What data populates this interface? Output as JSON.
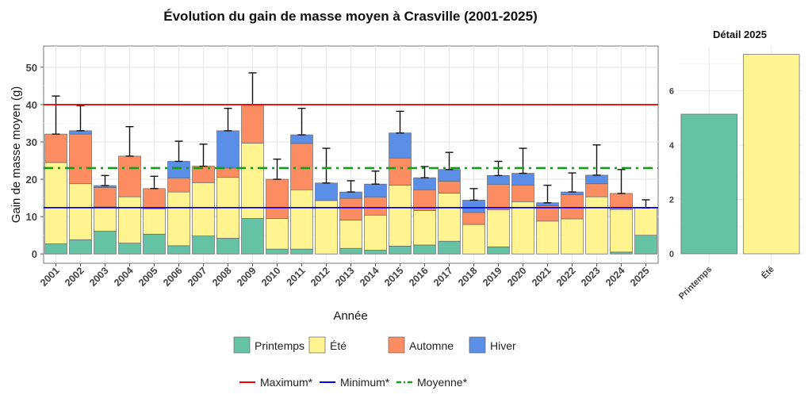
{
  "chart_data": [
    {
      "type": "bar",
      "stacked": true,
      "title": "Évolution du gain de masse moyen à Crasville (2001-2025)",
      "xlabel": "Année",
      "ylabel": "Gain de masse moyen (g)",
      "ylim": [
        -2.5,
        55.7
      ],
      "yticks": [
        0,
        10,
        20,
        30,
        40,
        50
      ],
      "grid": true,
      "categories": [
        "2001",
        "2002",
        "2003",
        "2004",
        "2005",
        "2006",
        "2007",
        "2008",
        "2009",
        "2010",
        "2011",
        "2012",
        "2013",
        "2014",
        "2015",
        "2016",
        "2017",
        "2018",
        "2019",
        "2020",
        "2021",
        "2022",
        "2023",
        "2024",
        "2025"
      ],
      "series": [
        {
          "name": "Printemps",
          "color": "#66c2a5",
          "values": [
            2.7,
            3.8,
            6.1,
            2.9,
            5.3,
            2.2,
            4.8,
            4.2,
            9.5,
            1.3,
            1.3,
            0,
            1.5,
            1.0,
            2.1,
            2.4,
            3.4,
            0,
            1.9,
            0,
            0,
            0,
            0,
            0.5,
            5.0
          ]
        },
        {
          "name": "Été",
          "color": "#fff48f",
          "values": [
            21.8,
            15.0,
            6.5,
            12.4,
            6.8,
            14.4,
            14.3,
            16.3,
            20.2,
            8.2,
            15.9,
            14.3,
            7.6,
            9.4,
            16.3,
            9.2,
            12.9,
            7.9,
            9.9,
            14.0,
            8.8,
            9.4,
            15.3,
            11.4,
            7.3
          ]
        },
        {
          "name": "Automne",
          "color": "#fc8d62",
          "values": [
            7.6,
            13.3,
            5.2,
            10.9,
            5.4,
            3.7,
            4.4,
            2.5,
            10.3,
            10.5,
            12.4,
            0,
            5.8,
            4.8,
            7.3,
            5.6,
            3.2,
            3.2,
            6.8,
            4.4,
            4.1,
            6.5,
            3.5,
            4.3,
            0
          ]
        },
        {
          "name": "Hiver",
          "color": "#5b8ee6",
          "values": [
            0,
            0.9,
            0.5,
            0,
            0,
            4.5,
            0,
            10.0,
            0,
            0,
            2.3,
            4.7,
            1.7,
            3.5,
            6.7,
            3.2,
            3.1,
            3.3,
            2.4,
            3.2,
            0.8,
            0.7,
            2.3,
            0,
            0
          ]
        }
      ],
      "error_upper": [
        42.3,
        39.7,
        21.0,
        34.1,
        20.8,
        30.2,
        29.4,
        39.0,
        48.5,
        25.4,
        39.0,
        28.3,
        19.6,
        22.2,
        38.2,
        23.4,
        27.2,
        17.5,
        24.8,
        28.3,
        18.4,
        21.7,
        29.2,
        22.6,
        14.5
      ],
      "reference_lines": [
        {
          "name": "Maximum*",
          "value": 40.0,
          "color": "#ff0000",
          "style": "solid"
        },
        {
          "name": "Minimum*",
          "value": 12.4,
          "color": "#0000ff",
          "style": "solid"
        },
        {
          "name": "Moyenne*",
          "value": 23.0,
          "color": "#1a9a1a",
          "style": "dotdash"
        }
      ],
      "legend_placement": "bottom"
    },
    {
      "type": "bar",
      "title": "Détail 2025",
      "categories": [
        "Printemps",
        "Été"
      ],
      "values": [
        5.14,
        7.34
      ],
      "colors": [
        "#66c2a5",
        "#fff48f"
      ],
      "ylim": [
        -0.35,
        7.65
      ],
      "yticks": [
        0,
        2,
        4,
        6
      ],
      "grid": true
    }
  ]
}
